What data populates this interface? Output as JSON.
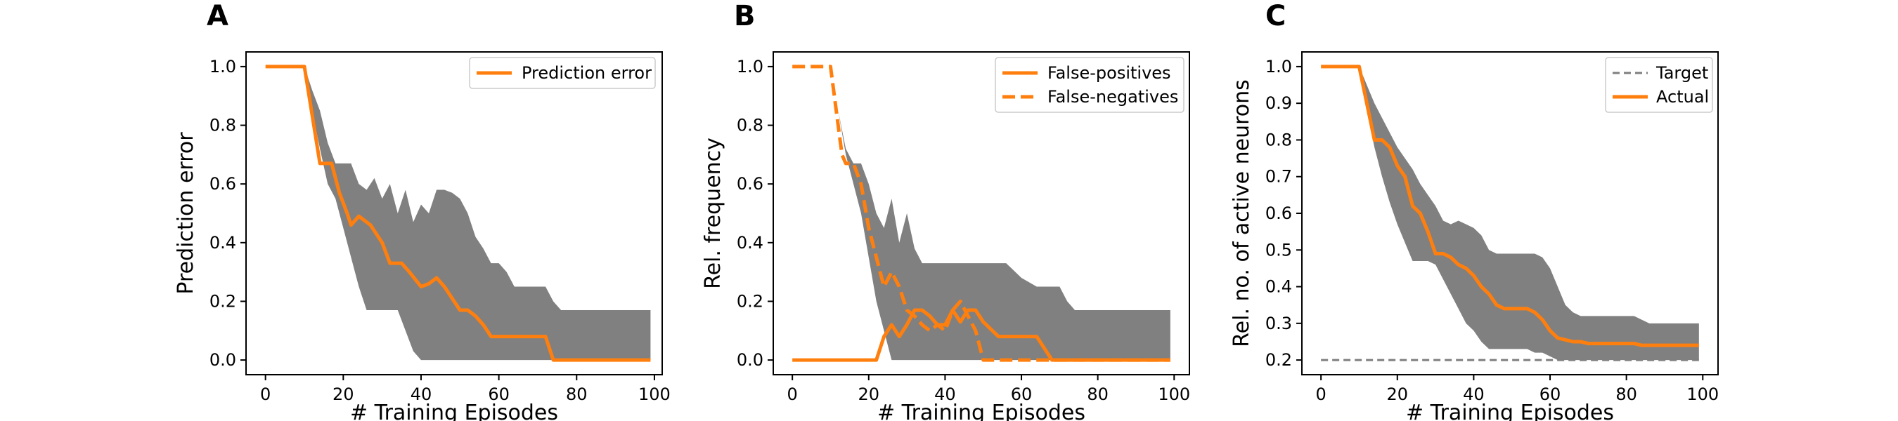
{
  "colors": {
    "line": "#ff7f0e",
    "band": "#808080",
    "target": "#7f7f7f"
  },
  "chart_data": [
    {
      "type": "line",
      "panel": "A",
      "xlabel": "# Training Episodes",
      "ylabel": "Prediction error",
      "xlim": [
        -5,
        102
      ],
      "ylim": [
        -0.05,
        1.05
      ],
      "xticks": [
        0,
        20,
        40,
        60,
        80,
        100
      ],
      "yticks": [
        0.0,
        0.2,
        0.4,
        0.6,
        0.8,
        1.0
      ],
      "ytick_labels": [
        "0.0",
        "0.2",
        "0.4",
        "0.6",
        "0.8",
        "1.0"
      ],
      "grid": false,
      "legend_position": "top-right",
      "band": {
        "x": [
          10,
          12,
          14,
          16,
          18,
          20,
          22,
          24,
          26,
          28,
          30,
          32,
          34,
          36,
          38,
          40,
          42,
          44,
          46,
          48,
          50,
          52,
          54,
          56,
          58,
          60,
          62,
          64,
          66,
          68,
          70,
          72,
          74,
          76,
          78,
          80,
          99
        ],
        "upper": [
          1.0,
          0.92,
          0.85,
          0.74,
          0.67,
          0.67,
          0.67,
          0.6,
          0.58,
          0.62,
          0.55,
          0.6,
          0.5,
          0.58,
          0.47,
          0.53,
          0.5,
          0.58,
          0.58,
          0.57,
          0.55,
          0.5,
          0.42,
          0.38,
          0.33,
          0.33,
          0.3,
          0.25,
          0.25,
          0.25,
          0.25,
          0.25,
          0.2,
          0.17,
          0.17,
          0.17,
          0.17
        ],
        "lower": [
          1.0,
          0.85,
          0.72,
          0.6,
          0.55,
          0.45,
          0.35,
          0.25,
          0.17,
          0.17,
          0.17,
          0.17,
          0.17,
          0.1,
          0.03,
          0.0,
          0.0,
          0.0,
          0.0,
          0.0,
          0.0,
          0.0,
          0.0,
          0.0,
          0.0,
          0.0,
          0.0,
          0.0,
          0.0,
          0.0,
          0.0,
          0.0,
          0.0,
          0.0,
          0.0,
          0.0,
          0.0
        ]
      },
      "series": [
        {
          "name": "Prediction error",
          "style": "solid",
          "x": [
            0,
            10,
            14,
            17,
            19,
            21,
            22,
            24,
            27,
            30,
            32,
            35,
            37,
            40,
            42,
            44,
            46,
            48,
            50,
            52,
            54,
            56,
            58,
            60,
            64,
            66,
            68,
            70,
            72,
            74,
            99
          ],
          "y": [
            1.0,
            1.0,
            0.67,
            0.67,
            0.57,
            0.5,
            0.46,
            0.49,
            0.46,
            0.4,
            0.33,
            0.33,
            0.3,
            0.25,
            0.26,
            0.28,
            0.25,
            0.21,
            0.17,
            0.17,
            0.15,
            0.12,
            0.08,
            0.08,
            0.08,
            0.08,
            0.08,
            0.08,
            0.08,
            0.0,
            0.0
          ]
        }
      ]
    },
    {
      "type": "line",
      "panel": "B",
      "xlabel": "# Training Episodes",
      "ylabel": "Rel. frequency",
      "xlim": [
        -5,
        104
      ],
      "ylim": [
        -0.05,
        1.05
      ],
      "xticks": [
        0,
        20,
        40,
        60,
        80,
        100
      ],
      "yticks": [
        0.0,
        0.2,
        0.4,
        0.6,
        0.8,
        1.0
      ],
      "ytick_labels": [
        "0.0",
        "0.2",
        "0.4",
        "0.6",
        "0.8",
        "1.0"
      ],
      "grid": false,
      "legend_position": "top-right",
      "band": {
        "x": [
          10,
          12,
          14,
          16,
          18,
          20,
          22,
          24,
          26,
          28,
          30,
          32,
          34,
          36,
          40,
          44,
          48,
          52,
          56,
          60,
          64,
          66,
          68,
          70,
          72,
          74,
          76,
          99
        ],
        "upper": [
          1.0,
          0.85,
          0.72,
          0.67,
          0.67,
          0.6,
          0.5,
          0.45,
          0.55,
          0.4,
          0.5,
          0.38,
          0.33,
          0.33,
          0.33,
          0.33,
          0.33,
          0.33,
          0.33,
          0.28,
          0.25,
          0.25,
          0.25,
          0.25,
          0.2,
          0.17,
          0.17,
          0.17
        ],
        "lower": [
          1.0,
          0.85,
          0.7,
          0.6,
          0.5,
          0.35,
          0.2,
          0.1,
          0.0,
          0.0,
          0.0,
          0.0,
          0.0,
          0.0,
          0.0,
          0.0,
          0.0,
          0.0,
          0.0,
          0.0,
          0.0,
          0.0,
          0.0,
          0.0,
          0.0,
          0.0,
          0.0,
          0.0
        ]
      },
      "series": [
        {
          "name": "False-positives",
          "style": "solid",
          "x": [
            0,
            22,
            24,
            26,
            28,
            30,
            32,
            34,
            36,
            38,
            40,
            42,
            44,
            46,
            48,
            50,
            54,
            56,
            58,
            60,
            64,
            66,
            68,
            70,
            99
          ],
          "y": [
            0.0,
            0.0,
            0.08,
            0.12,
            0.08,
            0.12,
            0.17,
            0.17,
            0.15,
            0.12,
            0.12,
            0.17,
            0.13,
            0.17,
            0.17,
            0.13,
            0.08,
            0.08,
            0.08,
            0.08,
            0.08,
            0.04,
            0.0,
            0.0,
            0.0
          ]
        },
        {
          "name": "False-negatives",
          "style": "dashed",
          "x": [
            0,
            10,
            12,
            13,
            14,
            16,
            18,
            20,
            22,
            24,
            26,
            28,
            30,
            32,
            34,
            36,
            38,
            40,
            42,
            44,
            46,
            48,
            50,
            52,
            99
          ],
          "y": [
            1.0,
            1.0,
            0.8,
            0.7,
            0.67,
            0.67,
            0.6,
            0.45,
            0.35,
            0.25,
            0.3,
            0.25,
            0.17,
            0.15,
            0.12,
            0.1,
            0.12,
            0.1,
            0.17,
            0.2,
            0.15,
            0.1,
            0.0,
            0.0,
            0.0
          ]
        }
      ]
    },
    {
      "type": "line",
      "panel": "C",
      "xlabel": "# Training Episodes",
      "ylabel": "Rel. no. of active neurons",
      "xlim": [
        -5,
        104
      ],
      "ylim": [
        0.16,
        1.04
      ],
      "xticks": [
        0,
        20,
        40,
        60,
        80,
        100
      ],
      "yticks": [
        0.2,
        0.3,
        0.4,
        0.5,
        0.6,
        0.7,
        0.8,
        0.9,
        1.0
      ],
      "ytick_labels": [
        "0.2",
        "0.3",
        "0.4",
        "0.5",
        "0.6",
        "0.7",
        "0.8",
        "0.9",
        "1.0"
      ],
      "grid": false,
      "legend_position": "top-right",
      "band": {
        "x": [
          10,
          12,
          14,
          16,
          18,
          20,
          22,
          24,
          26,
          28,
          30,
          32,
          34,
          36,
          38,
          40,
          42,
          44,
          46,
          48,
          50,
          52,
          54,
          56,
          58,
          60,
          62,
          64,
          66,
          68,
          70,
          72,
          74,
          76,
          78,
          80,
          82,
          84,
          86,
          88,
          90,
          99
        ],
        "upper": [
          1.0,
          0.95,
          0.9,
          0.86,
          0.82,
          0.78,
          0.75,
          0.72,
          0.68,
          0.65,
          0.62,
          0.58,
          0.57,
          0.58,
          0.57,
          0.56,
          0.54,
          0.5,
          0.49,
          0.49,
          0.49,
          0.49,
          0.49,
          0.49,
          0.48,
          0.45,
          0.4,
          0.35,
          0.33,
          0.32,
          0.32,
          0.32,
          0.32,
          0.32,
          0.32,
          0.32,
          0.32,
          0.31,
          0.3,
          0.3,
          0.3,
          0.3
        ],
        "lower": [
          1.0,
          0.88,
          0.78,
          0.7,
          0.63,
          0.57,
          0.52,
          0.47,
          0.47,
          0.47,
          0.46,
          0.42,
          0.38,
          0.34,
          0.3,
          0.28,
          0.25,
          0.23,
          0.23,
          0.23,
          0.23,
          0.23,
          0.23,
          0.22,
          0.22,
          0.21,
          0.2,
          0.2,
          0.2,
          0.2,
          0.2,
          0.2,
          0.2,
          0.2,
          0.2,
          0.2,
          0.2,
          0.2,
          0.2,
          0.2,
          0.2,
          0.2
        ]
      },
      "series": [
        {
          "name": "Target",
          "style": "dashed",
          "x": [
            0,
            99
          ],
          "y": [
            0.2,
            0.2
          ]
        },
        {
          "name": "Actual",
          "style": "solid",
          "x": [
            0,
            10,
            12,
            14,
            16,
            18,
            20,
            22,
            24,
            26,
            28,
            30,
            32,
            34,
            36,
            38,
            40,
            42,
            44,
            46,
            48,
            50,
            52,
            54,
            56,
            58,
            60,
            62,
            64,
            66,
            68,
            70,
            72,
            74,
            76,
            78,
            80,
            82,
            84,
            86,
            88,
            90,
            99
          ],
          "y": [
            1.0,
            1.0,
            0.9,
            0.8,
            0.8,
            0.78,
            0.73,
            0.7,
            0.62,
            0.6,
            0.55,
            0.49,
            0.49,
            0.48,
            0.46,
            0.45,
            0.43,
            0.4,
            0.38,
            0.35,
            0.34,
            0.34,
            0.34,
            0.34,
            0.33,
            0.31,
            0.28,
            0.26,
            0.255,
            0.25,
            0.25,
            0.245,
            0.245,
            0.245,
            0.245,
            0.245,
            0.245,
            0.245,
            0.24,
            0.24,
            0.24,
            0.24,
            0.24
          ]
        }
      ]
    }
  ]
}
